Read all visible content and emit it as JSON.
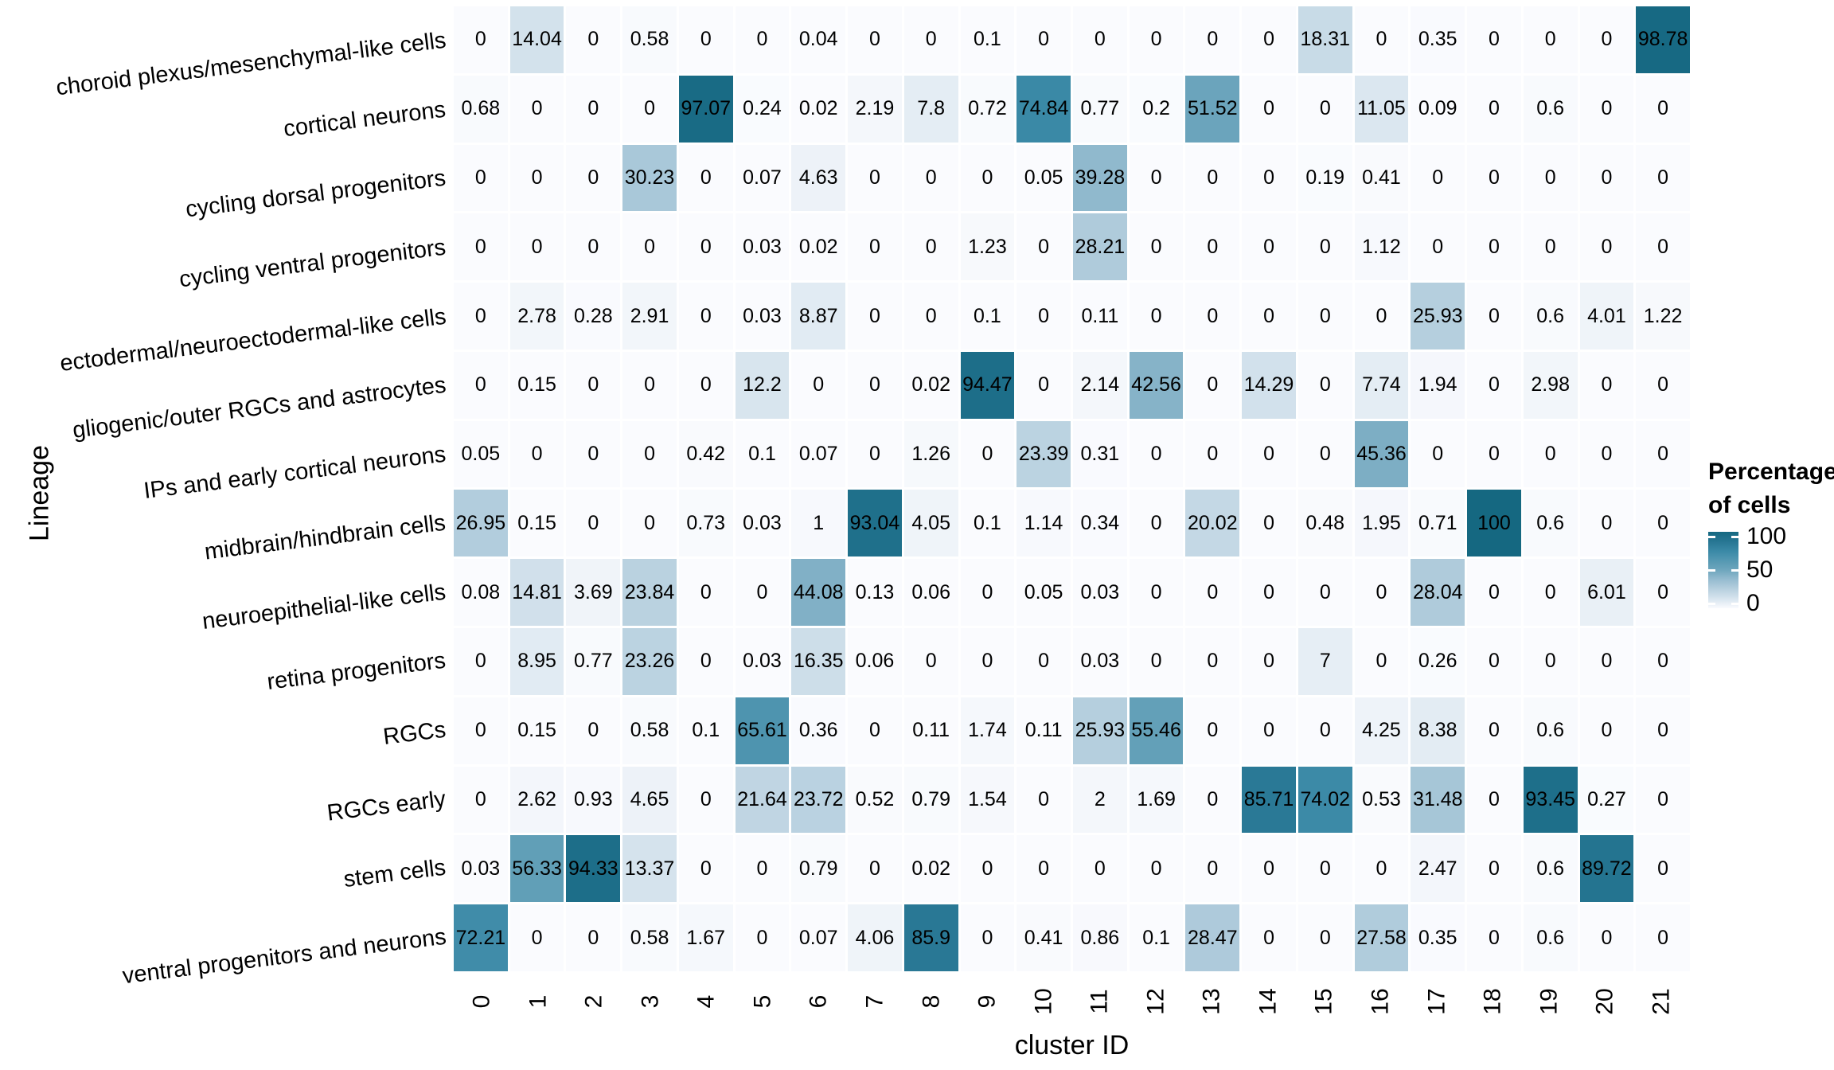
{
  "chart_data": {
    "type": "heatmap",
    "xlabel": "cluster ID",
    "ylabel": "Lineage",
    "columns": [
      "0",
      "1",
      "2",
      "3",
      "4",
      "5",
      "6",
      "7",
      "8",
      "9",
      "10",
      "11",
      "12",
      "13",
      "14",
      "15",
      "16",
      "17",
      "18",
      "19",
      "20",
      "21"
    ],
    "rows": [
      "choroid plexus/mesenchymal-like cells",
      "cortical neurons",
      "cycling dorsal progenitors",
      "cycling ventral progenitors",
      "ectodermal/neuroectodermal-like cells",
      "gliogenic/outer RGCs and astrocytes",
      "IPs and early cortical neurons",
      "midbrain/hindbrain cells",
      "neuroepithelial-like cells",
      "retina progenitors",
      "RGCs",
      "RGCs early",
      "stem cells",
      "ventral progenitors and neurons"
    ],
    "values": [
      [
        0,
        14.04,
        0,
        0.58,
        0,
        0,
        0.04,
        0,
        0,
        0.1,
        0,
        0,
        0,
        0,
        0,
        18.31,
        0,
        0.35,
        0,
        0,
        0,
        98.78
      ],
      [
        0.68,
        0,
        0,
        0,
        97.07,
        0.24,
        0.02,
        2.19,
        7.8,
        0.72,
        74.84,
        0.77,
        0.2,
        51.52,
        0,
        0,
        11.05,
        0.09,
        0,
        0.6,
        0,
        0
      ],
      [
        0,
        0,
        0,
        30.23,
        0,
        0.07,
        4.63,
        0,
        0,
        0,
        0.05,
        39.28,
        0,
        0,
        0,
        0.19,
        0.41,
        0,
        0,
        0,
        0,
        0
      ],
      [
        0,
        0,
        0,
        0,
        0,
        0.03,
        0.02,
        0,
        0,
        1.23,
        0,
        28.21,
        0,
        0,
        0,
        0,
        1.12,
        0,
        0,
        0,
        0,
        0
      ],
      [
        0,
        2.78,
        0.28,
        2.91,
        0,
        0.03,
        8.87,
        0,
        0,
        0.1,
        0,
        0.11,
        0,
        0,
        0,
        0,
        0,
        25.93,
        0,
        0.6,
        4.01,
        1.22
      ],
      [
        0,
        0.15,
        0,
        0,
        0,
        12.2,
        0,
        0,
        0.02,
        94.47,
        0,
        2.14,
        42.56,
        0,
        14.29,
        0,
        7.74,
        1.94,
        0,
        2.98,
        0,
        0
      ],
      [
        0.05,
        0,
        0,
        0,
        0.42,
        0.1,
        0.07,
        0,
        1.26,
        0,
        23.39,
        0.31,
        0,
        0,
        0,
        0,
        45.36,
        0,
        0,
        0,
        0,
        0
      ],
      [
        26.95,
        0.15,
        0,
        0,
        0.73,
        0.03,
        1,
        93.04,
        4.05,
        0.1,
        1.14,
        0.34,
        0,
        20.02,
        0,
        0.48,
        1.95,
        0.71,
        100,
        0.6,
        0,
        0
      ],
      [
        0.08,
        14.81,
        3.69,
        23.84,
        0,
        0,
        44.08,
        0.13,
        0.06,
        0,
        0.05,
        0.03,
        0,
        0,
        0,
        0,
        0,
        28.04,
        0,
        0,
        6.01,
        0
      ],
      [
        0,
        8.95,
        0.77,
        23.26,
        0,
        0.03,
        16.35,
        0.06,
        0,
        0,
        0,
        0.03,
        0,
        0,
        0,
        7,
        0,
        0.26,
        0,
        0,
        0,
        0
      ],
      [
        0,
        0.15,
        0,
        0.58,
        0.1,
        65.61,
        0.36,
        0,
        0.11,
        1.74,
        0.11,
        25.93,
        55.46,
        0,
        0,
        0,
        4.25,
        8.38,
        0,
        0.6,
        0,
        0
      ],
      [
        0,
        2.62,
        0.93,
        4.65,
        0,
        21.64,
        23.72,
        0.52,
        0.79,
        1.54,
        0,
        2,
        1.69,
        0,
        85.71,
        74.02,
        0.53,
        31.48,
        0,
        93.45,
        0.27,
        0
      ],
      [
        0.03,
        56.33,
        94.33,
        13.37,
        0,
        0,
        0.79,
        0,
        0.02,
        0,
        0,
        0,
        0,
        0,
        0,
        0,
        0,
        2.47,
        0,
        0.6,
        89.72,
        0
      ],
      [
        72.21,
        0,
        0,
        0.58,
        1.67,
        0,
        0.07,
        4.06,
        85.9,
        0,
        0.41,
        0.86,
        0.1,
        28.47,
        0,
        0,
        27.58,
        0.35,
        0,
        0.6,
        0,
        0
      ]
    ],
    "legend": {
      "title_lines": [
        "Percentage",
        "of cells"
      ],
      "ticks": [
        "100",
        "50",
        "0"
      ],
      "position": "right"
    },
    "color_scale": {
      "low": "#fafbfe",
      "high": "#156881",
      "stops": [
        "#fafbfe",
        "#d7e4ee",
        "#b7d0df",
        "#96bcd0",
        "#6ea6bd",
        "#5498b2",
        "#3a89a6",
        "#277693",
        "#156881"
      ],
      "domain": [
        0,
        100
      ]
    },
    "grid": "off"
  }
}
